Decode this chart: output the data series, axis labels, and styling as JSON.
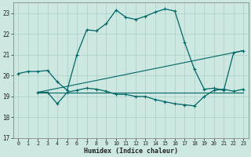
{
  "title": "",
  "xlabel": "Humidex (Indice chaleur)",
  "xlim": [
    -0.5,
    23.5
  ],
  "ylim": [
    17,
    23.5
  ],
  "yticks": [
    17,
    18,
    19,
    20,
    21,
    22,
    23
  ],
  "xticks": [
    0,
    1,
    2,
    3,
    4,
    5,
    6,
    7,
    8,
    9,
    10,
    11,
    12,
    13,
    14,
    15,
    16,
    17,
    18,
    19,
    20,
    21,
    22,
    23
  ],
  "bg_color": "#cce8e0",
  "grid_color": "#aacfc8",
  "line_color": "#006666",
  "series": {
    "main": {
      "x": [
        0,
        1,
        2,
        3,
        4,
        5,
        6,
        7,
        8,
        9,
        10,
        11,
        12,
        13,
        14,
        15,
        16,
        17,
        18,
        19,
        20,
        21,
        22,
        23
      ],
      "y": [
        20.1,
        20.2,
        20.2,
        20.25,
        19.7,
        19.3,
        21.0,
        22.2,
        22.15,
        22.5,
        23.15,
        22.8,
        22.7,
        22.85,
        23.05,
        23.2,
        23.1,
        21.6,
        20.3,
        19.35,
        19.4,
        19.3,
        21.1,
        21.2
      ]
    },
    "lower": {
      "x": [
        2,
        3,
        4,
        5,
        6,
        7,
        8,
        9,
        10,
        11,
        12,
        13,
        14,
        15,
        16,
        17,
        18,
        19,
        20,
        21,
        22,
        23
      ],
      "y": [
        19.2,
        19.2,
        18.65,
        19.2,
        19.3,
        19.4,
        19.35,
        19.25,
        19.1,
        19.1,
        19.0,
        19.0,
        18.85,
        18.75,
        18.65,
        18.6,
        18.55,
        19.0,
        19.3,
        19.35,
        19.25,
        19.35
      ]
    },
    "trend_flat": {
      "x": [
        2,
        23
      ],
      "y": [
        19.2,
        19.2
      ]
    },
    "trend_up": {
      "x": [
        2,
        23
      ],
      "y": [
        19.2,
        21.2
      ]
    }
  }
}
